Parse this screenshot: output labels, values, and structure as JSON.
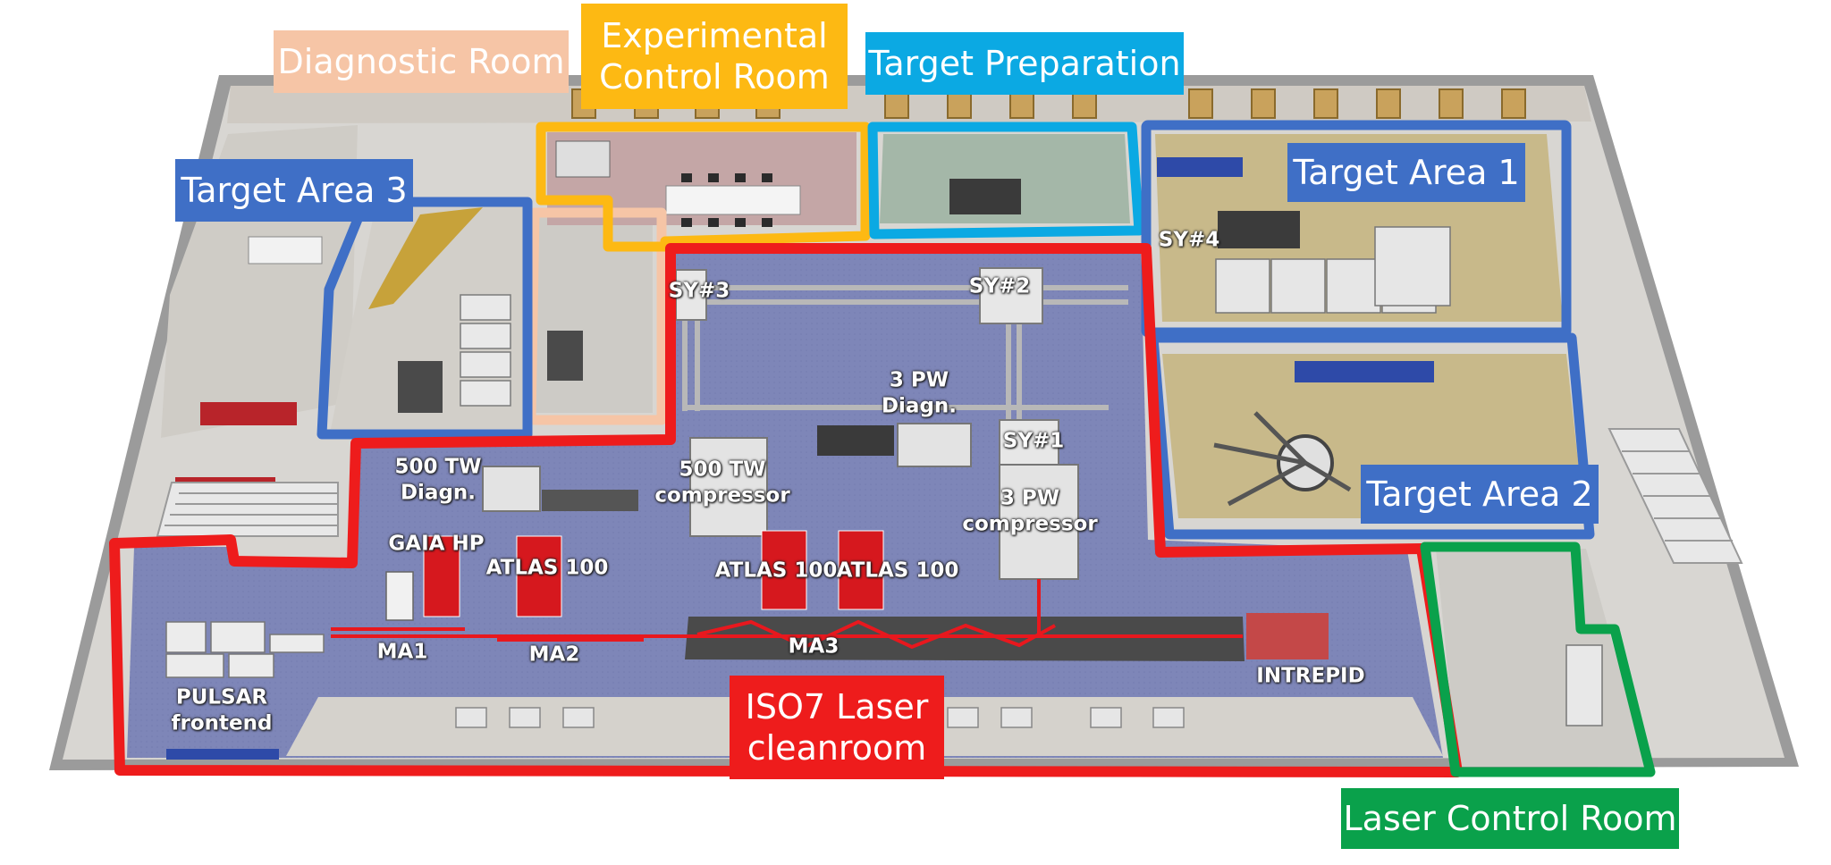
{
  "room_labels": {
    "diagnostic_room": "Diagnostic Room",
    "experimental_control_room": [
      "Experimental",
      "Control Room"
    ],
    "target_preparation": "Target Preparation",
    "target_area_3": "Target Area 3",
    "target_area_1": "Target Area 1",
    "target_area_2": "Target Area 2",
    "iso7_laser_cleanroom": [
      "ISO7 Laser",
      "cleanroom"
    ],
    "laser_control_room": "Laser Control Room"
  },
  "equipment_labels": {
    "sy3": "SY#3",
    "sy2": "SY#2",
    "sy1": "SY#1",
    "sy4": "SY#4",
    "pw_diagn": [
      "3 PW",
      "Diagn."
    ],
    "pw_compressor": [
      "3 PW",
      "compressor"
    ],
    "tw_diagn": [
      "500 TW",
      "Diagn."
    ],
    "tw_compressor": [
      "500 TW",
      "compressor"
    ],
    "gaia_hp": "GAIA HP",
    "atlas_left": "ATLAS 100",
    "atlas_mid": "ATLAS 100",
    "atlas_right": "ATLAS 100",
    "ma1": "MA1",
    "ma2": "MA2",
    "ma3": "MA3",
    "intrepid": "INTREPID",
    "pulsar": [
      "PULSAR",
      "frontend"
    ]
  },
  "colors": {
    "diagnostic_room": "#F6C5A6",
    "experimental_control_room": "#FDB913",
    "target_preparation": "#0BA9E3",
    "target_area": "#3F6FC6",
    "iso7_laser_cleanroom": "#EE1C1C",
    "laser_control_room": "#0AA14B",
    "floor_cleanroom": "#7E86B8",
    "floor_target_area": "#C8B98A"
  }
}
